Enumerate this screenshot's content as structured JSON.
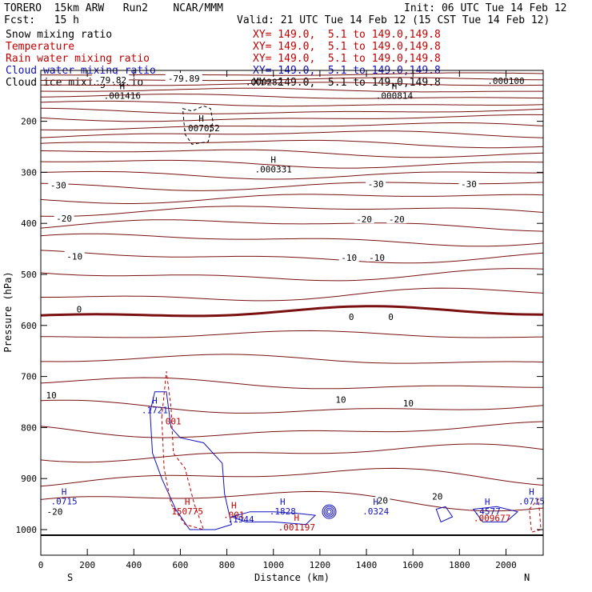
{
  "header": {
    "left_line1": "TORERO  15km ARW   Run2    NCAR/MMM",
    "left_line2": "Fcst:   15 h",
    "init": "Init: 06 UTC Tue 14 Feb 12",
    "valid": "Valid: 21 UTC Tue 14 Feb 12 (15 CST Tue 14 Feb 12)"
  },
  "legend": [
    {
      "label": "Snow mixing ratio",
      "xy": "XY= 149.0,  5.1 to 149.0,149.8",
      "color": "#000000"
    },
    {
      "label": "Temperature",
      "xy": "XY= 149.0,  5.1 to 149.0,149.8",
      "color": "#c00000"
    },
    {
      "label": "Rain water mixing ratio",
      "xy": "XY= 149.0,  5.1 to 149.0,149.8",
      "color": "#c00000"
    },
    {
      "label": "Cloud water mixing ratio",
      "xy": "XY= 149.0,  5.1 to 149.0,149.8",
      "color": "#1010c0"
    },
    {
      "label": "Cloud ice mixing ratio",
      "xy": "XY= 149.0,  5.1 to 149.0,149.8",
      "color": "#000000"
    }
  ],
  "chart_data": {
    "type": "contour-cross-section",
    "xlabel": "Distance (km)",
    "ylabel": "Pressure (hPa)",
    "xlim": [
      0,
      2160
    ],
    "ylim": [
      1050,
      100
    ],
    "xticks": [
      0,
      200,
      400,
      600,
      800,
      1000,
      1200,
      1400,
      1600,
      1800,
      2000
    ],
    "yticks": [
      200,
      300,
      400,
      500,
      600,
      700,
      800,
      900,
      1000
    ],
    "x_end_labels": {
      "left": "S",
      "right": "N"
    },
    "temperature_labels": [
      {
        "text": "-79.82",
        "x": 300,
        "p": 119
      },
      {
        "text": "-79.89",
        "x": 615,
        "p": 116
      },
      {
        "text": "-30",
        "x": 75,
        "p": 325
      },
      {
        "text": "-30",
        "x": 1440,
        "p": 323
      },
      {
        "text": "-30",
        "x": 1840,
        "p": 323
      },
      {
        "text": "-20",
        "x": 100,
        "p": 390
      },
      {
        "text": "-20",
        "x": 1390,
        "p": 392
      },
      {
        "text": "-20",
        "x": 1530,
        "p": 392
      },
      {
        "text": "-10",
        "x": 145,
        "p": 465
      },
      {
        "text": "-10",
        "x": 1325,
        "p": 467
      },
      {
        "text": "-10",
        "x": 1445,
        "p": 467
      },
      {
        "text": "0",
        "x": 165,
        "p": 568
      },
      {
        "text": "0",
        "x": 1335,
        "p": 583
      },
      {
        "text": "0",
        "x": 1505,
        "p": 583
      },
      {
        "text": "10",
        "x": 45,
        "p": 737
      },
      {
        "text": "10",
        "x": 1290,
        "p": 745
      },
      {
        "text": "10",
        "x": 1580,
        "p": 752
      },
      {
        "text": "20",
        "x": 1470,
        "p": 943
      },
      {
        "text": "20",
        "x": 1705,
        "p": 935
      },
      {
        "text": "-20",
        "x": 60,
        "p": 965
      }
    ],
    "extrema_labels": [
      {
        "marker": "H",
        "value": ".001416",
        "x": 350,
        "p": 150,
        "color": "#000000"
      },
      {
        "marker": "",
        "value": ".000282",
        "x": 960,
        "p": 123,
        "color": "#000000"
      },
      {
        "marker": "H",
        "value": ".000814",
        "x": 1520,
        "p": 150,
        "color": "#000000"
      },
      {
        "marker": "",
        "value": ".000100",
        "x": 2000,
        "p": 121,
        "color": "#000000"
      },
      {
        "marker": "H",
        "value": ".007052",
        "x": 690,
        "p": 213,
        "color": "#000000"
      },
      {
        "marker": "H",
        "value": ".000331",
        "x": 1000,
        "p": 294,
        "color": "#000000"
      },
      {
        "marker": "H",
        "value": ".1721",
        "x": 490,
        "p": 766,
        "color": "#1010c0"
      },
      {
        "marker": "",
        "value": "001",
        "x": 570,
        "p": 788,
        "color": "#c00000"
      },
      {
        "marker": "H",
        "value": ".0715",
        "x": 100,
        "p": 944,
        "color": "#1010c0"
      },
      {
        "marker": "H",
        "value": "150775",
        "x": 630,
        "p": 964,
        "color": "#c00000"
      },
      {
        "marker": "H",
        "value": ".001",
        "x": 830,
        "p": 971,
        "color": "#c00000"
      },
      {
        "marker": "",
        "value": ".1944",
        "x": 860,
        "p": 980,
        "color": "#1010c0"
      },
      {
        "marker": "H",
        "value": ".1828",
        "x": 1040,
        "p": 964,
        "color": "#1010c0"
      },
      {
        "marker": "H",
        "value": ".001197",
        "x": 1100,
        "p": 995,
        "color": "#c00000"
      },
      {
        "marker": "H",
        "value": ".0324",
        "x": 1440,
        "p": 964,
        "color": "#1010c0"
      },
      {
        "marker": "H",
        "value": ".4577",
        "x": 1920,
        "p": 964,
        "color": "#1010c0"
      },
      {
        "marker": "",
        "value": ".009677",
        "x": 1940,
        "p": 977,
        "color": "#c00000"
      },
      {
        "marker": "H",
        "value": ".0715",
        "x": 2110,
        "p": 944,
        "color": "#1010c0"
      }
    ]
  }
}
